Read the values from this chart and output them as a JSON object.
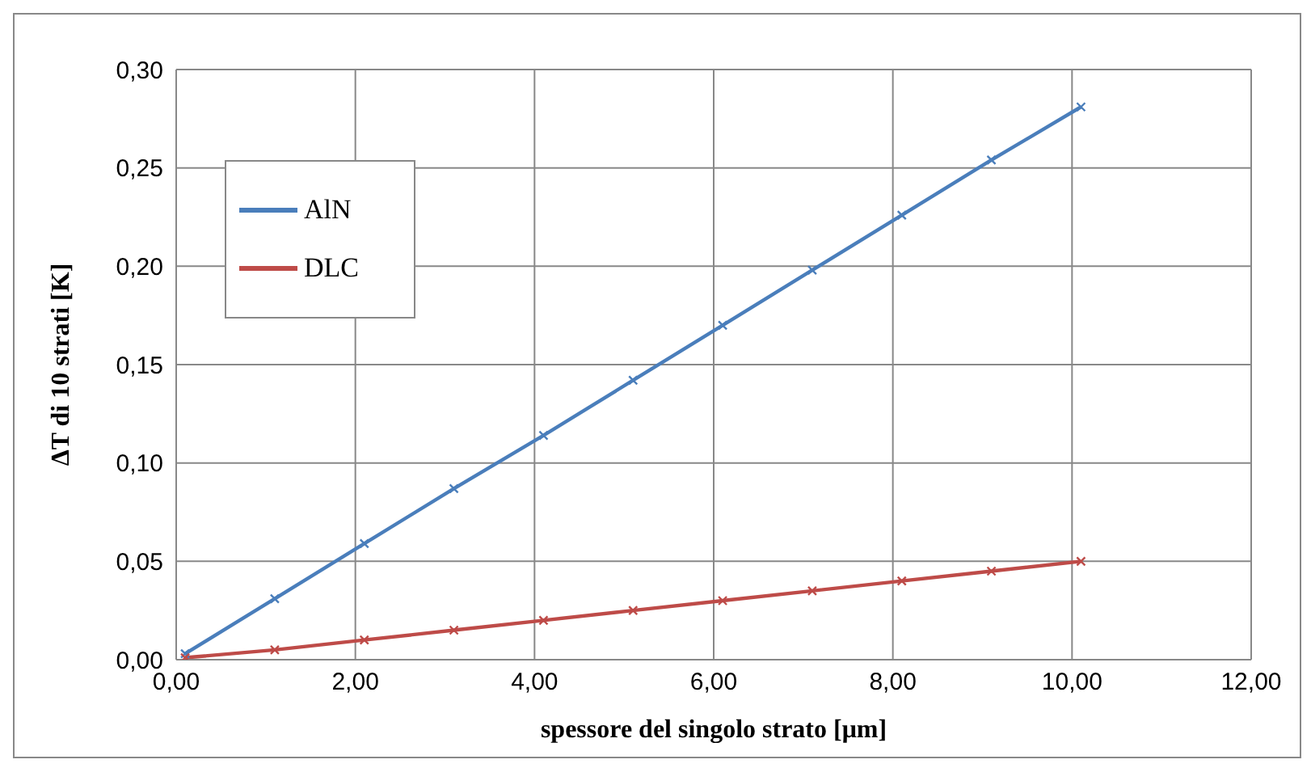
{
  "chart_data": {
    "type": "line",
    "xlabel": "spessore del singolo strato [μm]",
    "ylabel": "ΔT di 10 strati [K]",
    "x": [
      0.1,
      1.1,
      2.1,
      3.1,
      4.1,
      5.1,
      6.1,
      7.1,
      8.1,
      9.1,
      10.1
    ],
    "series": [
      {
        "name": "AlN",
        "color": "#4a7ebb",
        "values": [
          0.003,
          0.031,
          0.059,
          0.087,
          0.114,
          0.142,
          0.17,
          0.198,
          0.226,
          0.254,
          0.281
        ]
      },
      {
        "name": "DLC",
        "color": "#be4b48",
        "values": [
          0.001,
          0.005,
          0.01,
          0.015,
          0.02,
          0.025,
          0.03,
          0.035,
          0.04,
          0.045,
          0.05
        ]
      }
    ],
    "xlim": [
      0,
      12
    ],
    "xticks": [
      {
        "value": 0,
        "label": "0,00"
      },
      {
        "value": 2,
        "label": "2,00"
      },
      {
        "value": 4,
        "label": "4,00"
      },
      {
        "value": 6,
        "label": "6,00"
      },
      {
        "value": 8,
        "label": "8,00"
      },
      {
        "value": 10,
        "label": "10,00"
      },
      {
        "value": 12,
        "label": "12,00"
      }
    ],
    "ylim": [
      0,
      0.3
    ],
    "yticks": [
      {
        "value": 0,
        "label": "0,00"
      },
      {
        "value": 0.05,
        "label": "0,05"
      },
      {
        "value": 0.1,
        "label": "0,10"
      },
      {
        "value": 0.15,
        "label": "0,15"
      },
      {
        "value": 0.2,
        "label": "0,20"
      },
      {
        "value": 0.25,
        "label": "0,25"
      },
      {
        "value": 0.3,
        "label": "0,30"
      }
    ],
    "grid": true,
    "legend": "top left",
    "marker": "cross",
    "line_style": "solid"
  }
}
